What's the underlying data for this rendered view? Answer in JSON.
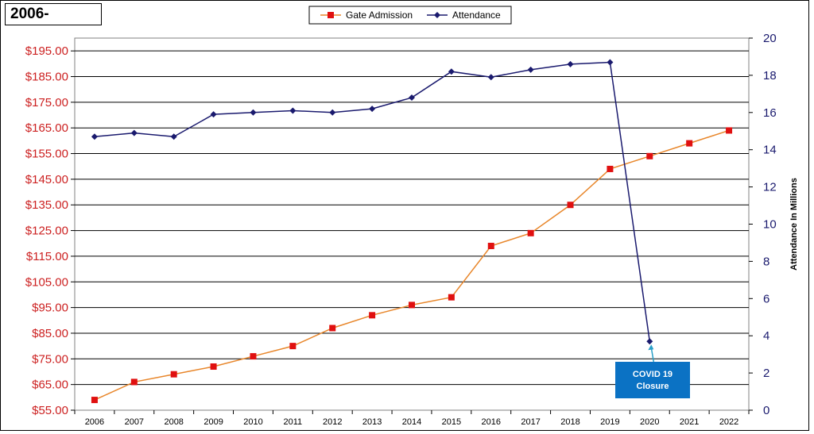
{
  "title_box": "2006-",
  "chart_data": {
    "type": "line",
    "categories": [
      "2006",
      "2007",
      "2008",
      "2009",
      "2010",
      "2011",
      "2012",
      "2013",
      "2014",
      "2015",
      "2016",
      "2017",
      "2018",
      "2019",
      "2020",
      "2021",
      "2022"
    ],
    "series": [
      {
        "name": "Gate Admission",
        "axis": "left",
        "color": "#e8862a",
        "marker_color": "#e01010",
        "marker": "square",
        "values": [
          59,
          66,
          69,
          72,
          76,
          80,
          87,
          92,
          96,
          99,
          119,
          124,
          135,
          149,
          154,
          159,
          164
        ]
      },
      {
        "name": "Attendance",
        "axis": "right",
        "color": "#1a1a6e",
        "marker_color": "#1a1a6e",
        "marker": "diamond",
        "values": [
          14.7,
          14.9,
          14.7,
          15.9,
          16.0,
          16.1,
          16.0,
          16.2,
          16.8,
          18.2,
          17.9,
          18.3,
          18.6,
          18.7,
          3.7,
          null,
          null
        ]
      }
    ],
    "y_left": {
      "ticks": [
        "$55.00",
        "$65.00",
        "$75.00",
        "$85.00",
        "$95.00",
        "$105.00",
        "$115.00",
        "$125.00",
        "$135.00",
        "$145.00",
        "$155.00",
        "$165.00",
        "$175.00",
        "$185.00",
        "$195.00"
      ],
      "ylim": [
        55,
        200
      ]
    },
    "y_right": {
      "label": "Attendance In Millions",
      "ticks": [
        "0",
        "2",
        "4",
        "6",
        "8",
        "10",
        "12",
        "14",
        "16",
        "18",
        "20"
      ],
      "ylim": [
        0,
        20
      ]
    },
    "grid": true,
    "legend_position": "top-center",
    "annotation": {
      "text_line1": "COVID 19",
      "text_line2": "Closure",
      "target_category": "2020",
      "box_color": "#0b72c4",
      "arrow_color": "#2aa0c8"
    }
  }
}
